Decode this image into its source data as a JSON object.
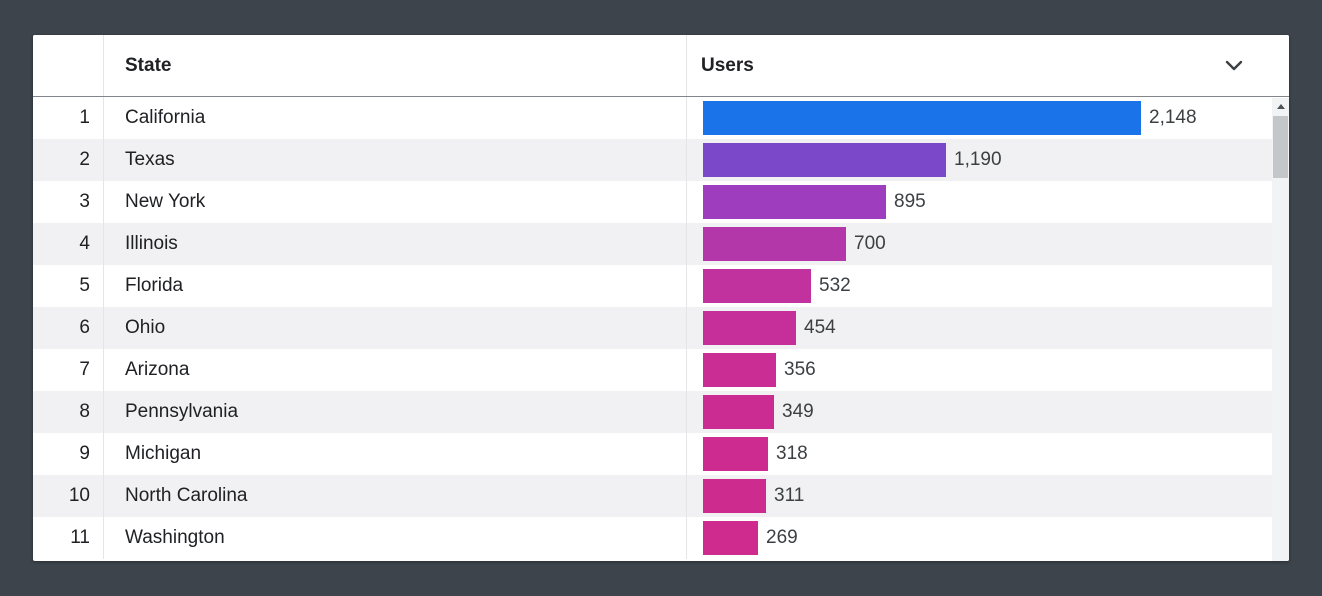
{
  "chart_data": {
    "type": "bar",
    "orientation": "horizontal",
    "title": "",
    "xlabel": "Users",
    "ylabel": "State",
    "categories": [
      "California",
      "Texas",
      "New York",
      "Illinois",
      "Florida",
      "Ohio",
      "Arizona",
      "Pennsylvania",
      "Michigan",
      "North Carolina",
      "Washington"
    ],
    "values": [
      2148,
      1190,
      895,
      700,
      532,
      454,
      356,
      349,
      318,
      311,
      269
    ],
    "xlim": [
      0,
      2148
    ],
    "grid": false,
    "legend": false
  },
  "table": {
    "columns": {
      "rank": "",
      "state": "State",
      "users": "Users"
    },
    "max_value": 2148,
    "rows": [
      {
        "rank": "1",
        "state": "California",
        "users_label": "2,148",
        "value": 2148,
        "bar_color": "#1a73e8"
      },
      {
        "rank": "2",
        "state": "Texas",
        "users_label": "1,190",
        "value": 1190,
        "bar_color": "#7a48c9"
      },
      {
        "rank": "3",
        "state": "New York",
        "users_label": "895",
        "value": 895,
        "bar_color": "#9e3ebe"
      },
      {
        "rank": "4",
        "state": "Illinois",
        "users_label": "700",
        "value": 700,
        "bar_color": "#b437aa"
      },
      {
        "rank": "5",
        "state": "Florida",
        "users_label": "532",
        "value": 532,
        "bar_color": "#c1329f"
      },
      {
        "rank": "6",
        "state": "Ohio",
        "users_label": "454",
        "value": 454,
        "bar_color": "#c62f99"
      },
      {
        "rank": "7",
        "state": "Arizona",
        "users_label": "356",
        "value": 356,
        "bar_color": "#ca2d94"
      },
      {
        "rank": "8",
        "state": "Pennsylvania",
        "users_label": "349",
        "value": 349,
        "bar_color": "#cb2c92"
      },
      {
        "rank": "9",
        "state": "Michigan",
        "users_label": "318",
        "value": 318,
        "bar_color": "#cd2b90"
      },
      {
        "rank": "10",
        "state": "North Carolina",
        "users_label": "311",
        "value": 311,
        "bar_color": "#ce2b8f"
      },
      {
        "rank": "11",
        "state": "Washington",
        "users_label": "269",
        "value": 269,
        "bar_color": "#cf2a8e"
      }
    ]
  }
}
